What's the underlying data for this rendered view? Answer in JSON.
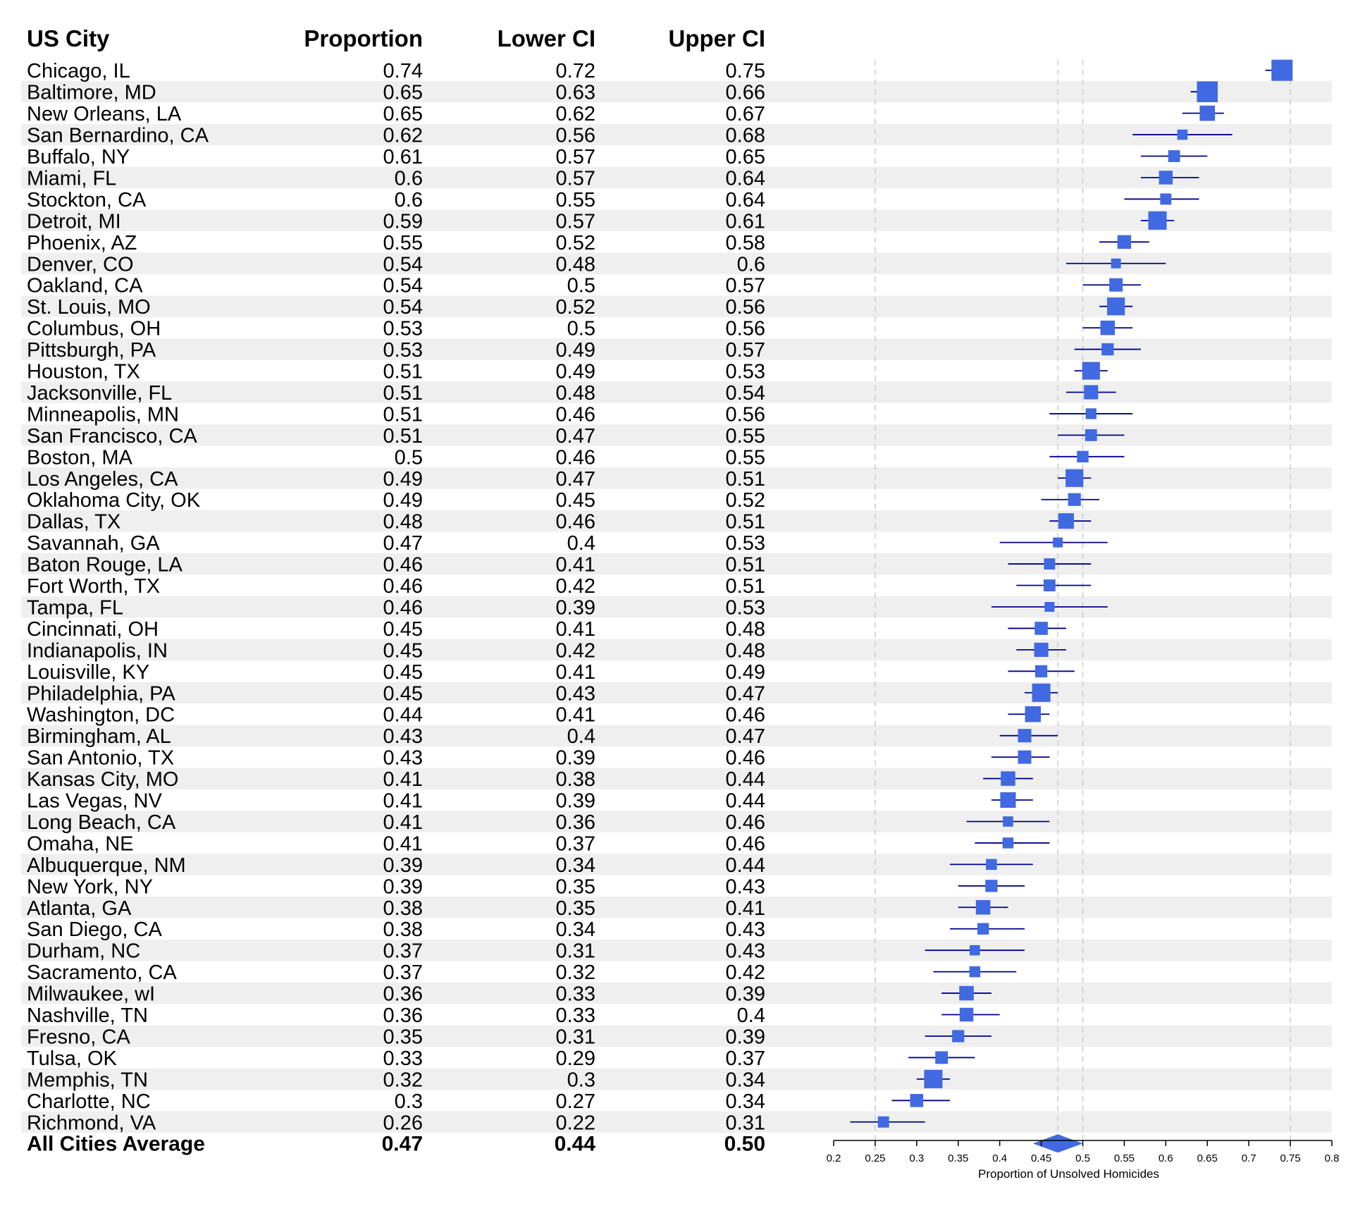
{
  "chart_data": {
    "type": "forest",
    "columns": [
      "US City",
      "Proportion",
      "Lower CI",
      "Upper CI"
    ],
    "xlabel": "Proportion of Unsolved Homicides",
    "xlim": [
      0.2,
      0.8
    ],
    "ticks": [
      0.2,
      0.25,
      0.3,
      0.35,
      0.4,
      0.45,
      0.5,
      0.55,
      0.6,
      0.65,
      0.7,
      0.75,
      0.8
    ],
    "tick_labels": [
      "0.2",
      "0.25",
      "0.3",
      "0.35",
      "0.4",
      "0.45",
      "0.5",
      "0.55",
      "0.6",
      "0.65",
      "0.7",
      "0.75",
      "0.8"
    ],
    "reference_lines": [
      0.25,
      0.47,
      0.5,
      0.75
    ],
    "rows": [
      {
        "city": "Chicago, IL",
        "est": 0.74,
        "lo": 0.72,
        "hi": 0.75,
        "est_text": "0.74",
        "lo_text": "0.72",
        "hi_text": "0.75",
        "w": 1.0
      },
      {
        "city": "Baltimore, MD",
        "est": 0.65,
        "lo": 0.63,
        "hi": 0.66,
        "est_text": "0.65",
        "lo_text": "0.63",
        "hi_text": "0.66",
        "w": 0.98
      },
      {
        "city": "New Orleans, LA",
        "est": 0.65,
        "lo": 0.62,
        "hi": 0.67,
        "est_text": "0.65",
        "lo_text": "0.62",
        "hi_text": "0.67",
        "w": 0.62
      },
      {
        "city": "San Bernardino, CA",
        "est": 0.62,
        "lo": 0.56,
        "hi": 0.68,
        "est_text": "0.62",
        "lo_text": "0.56",
        "hi_text": "0.68",
        "w": 0.3
      },
      {
        "city": "Buffalo, NY",
        "est": 0.61,
        "lo": 0.57,
        "hi": 0.65,
        "est_text": "0.61",
        "lo_text": "0.57",
        "hi_text": "0.65",
        "w": 0.4
      },
      {
        "city": "Miami, FL",
        "est": 0.6,
        "lo": 0.57,
        "hi": 0.64,
        "est_text": "0.6",
        "lo_text": "0.57",
        "hi_text": "0.64",
        "w": 0.52
      },
      {
        "city": "Stockton, CA",
        "est": 0.6,
        "lo": 0.55,
        "hi": 0.64,
        "est_text": "0.6",
        "lo_text": "0.55",
        "hi_text": "0.64",
        "w": 0.36
      },
      {
        "city": "Detroit, MI",
        "est": 0.59,
        "lo": 0.57,
        "hi": 0.61,
        "est_text": "0.59",
        "lo_text": "0.57",
        "hi_text": "0.61",
        "w": 0.82
      },
      {
        "city": "Phoenix, AZ",
        "est": 0.55,
        "lo": 0.52,
        "hi": 0.58,
        "est_text": "0.55",
        "lo_text": "0.52",
        "hi_text": "0.58",
        "w": 0.52
      },
      {
        "city": "Denver, CO",
        "est": 0.54,
        "lo": 0.48,
        "hi": 0.6,
        "est_text": "0.54",
        "lo_text": "0.48",
        "hi_text": "0.6",
        "w": 0.27
      },
      {
        "city": "Oakland, CA",
        "est": 0.54,
        "lo": 0.5,
        "hi": 0.57,
        "est_text": "0.54",
        "lo_text": "0.5",
        "hi_text": "0.57",
        "w": 0.5
      },
      {
        "city": "St. Louis, MO",
        "est": 0.54,
        "lo": 0.52,
        "hi": 0.56,
        "est_text": "0.54",
        "lo_text": "0.52",
        "hi_text": "0.56",
        "w": 0.78
      },
      {
        "city": "Columbus, OH",
        "est": 0.53,
        "lo": 0.5,
        "hi": 0.56,
        "est_text": "0.53",
        "lo_text": "0.5",
        "hi_text": "0.56",
        "w": 0.57
      },
      {
        "city": "Pittsburgh, PA",
        "est": 0.53,
        "lo": 0.49,
        "hi": 0.57,
        "est_text": "0.53",
        "lo_text": "0.49",
        "hi_text": "0.57",
        "w": 0.42
      },
      {
        "city": "Houston, TX",
        "est": 0.51,
        "lo": 0.49,
        "hi": 0.53,
        "est_text": "0.51",
        "lo_text": "0.49",
        "hi_text": "0.53",
        "w": 0.78
      },
      {
        "city": "Jacksonville, FL",
        "est": 0.51,
        "lo": 0.48,
        "hi": 0.54,
        "est_text": "0.51",
        "lo_text": "0.48",
        "hi_text": "0.54",
        "w": 0.55
      },
      {
        "city": "Minneapolis, MN",
        "est": 0.51,
        "lo": 0.46,
        "hi": 0.56,
        "est_text": "0.51",
        "lo_text": "0.46",
        "hi_text": "0.56",
        "w": 0.33
      },
      {
        "city": "San Francisco, CA",
        "est": 0.51,
        "lo": 0.47,
        "hi": 0.55,
        "est_text": "0.51",
        "lo_text": "0.47",
        "hi_text": "0.55",
        "w": 0.4
      },
      {
        "city": "Boston, MA",
        "est": 0.5,
        "lo": 0.46,
        "hi": 0.55,
        "est_text": "0.5",
        "lo_text": "0.46",
        "hi_text": "0.55",
        "w": 0.38
      },
      {
        "city": "Los Angeles, CA",
        "est": 0.49,
        "lo": 0.47,
        "hi": 0.51,
        "est_text": "0.49",
        "lo_text": "0.47",
        "hi_text": "0.51",
        "w": 0.78
      },
      {
        "city": "Oklahoma City, OK",
        "est": 0.49,
        "lo": 0.45,
        "hi": 0.52,
        "est_text": "0.49",
        "lo_text": "0.45",
        "hi_text": "0.52",
        "w": 0.46
      },
      {
        "city": "Dallas, TX",
        "est": 0.48,
        "lo": 0.46,
        "hi": 0.51,
        "est_text": "0.48",
        "lo_text": "0.46",
        "hi_text": "0.51",
        "w": 0.64
      },
      {
        "city": "Savannah, GA",
        "est": 0.47,
        "lo": 0.4,
        "hi": 0.53,
        "est_text": "0.47",
        "lo_text": "0.4",
        "hi_text": "0.53",
        "w": 0.27
      },
      {
        "city": "Baton Rouge, LA",
        "est": 0.46,
        "lo": 0.41,
        "hi": 0.51,
        "est_text": "0.46",
        "lo_text": "0.41",
        "hi_text": "0.51",
        "w": 0.36
      },
      {
        "city": "Fort Worth, TX",
        "est": 0.46,
        "lo": 0.42,
        "hi": 0.51,
        "est_text": "0.46",
        "lo_text": "0.42",
        "hi_text": "0.51",
        "w": 0.4
      },
      {
        "city": "Tampa, FL",
        "est": 0.46,
        "lo": 0.39,
        "hi": 0.53,
        "est_text": "0.46",
        "lo_text": "0.39",
        "hi_text": "0.53",
        "w": 0.27
      },
      {
        "city": "Cincinnati, OH",
        "est": 0.45,
        "lo": 0.41,
        "hi": 0.48,
        "est_text": "0.45",
        "lo_text": "0.41",
        "hi_text": "0.48",
        "w": 0.48
      },
      {
        "city": "Indianapolis, IN",
        "est": 0.45,
        "lo": 0.42,
        "hi": 0.48,
        "est_text": "0.45",
        "lo_text": "0.42",
        "hi_text": "0.48",
        "w": 0.55
      },
      {
        "city": "Louisville, KY",
        "est": 0.45,
        "lo": 0.41,
        "hi": 0.49,
        "est_text": "0.45",
        "lo_text": "0.41",
        "hi_text": "0.49",
        "w": 0.42
      },
      {
        "city": "Philadelphia, PA",
        "est": 0.45,
        "lo": 0.43,
        "hi": 0.47,
        "est_text": "0.45",
        "lo_text": "0.43",
        "hi_text": "0.47",
        "w": 0.82
      },
      {
        "city": "Washington, DC",
        "est": 0.44,
        "lo": 0.41,
        "hi": 0.46,
        "est_text": "0.44",
        "lo_text": "0.41",
        "hi_text": "0.46",
        "w": 0.66
      },
      {
        "city": "Birmingham, AL",
        "est": 0.43,
        "lo": 0.4,
        "hi": 0.47,
        "est_text": "0.43",
        "lo_text": "0.4",
        "hi_text": "0.47",
        "w": 0.5
      },
      {
        "city": "San Antonio, TX",
        "est": 0.43,
        "lo": 0.39,
        "hi": 0.46,
        "est_text": "0.43",
        "lo_text": "0.39",
        "hi_text": "0.46",
        "w": 0.5
      },
      {
        "city": "Kansas City, MO",
        "est": 0.41,
        "lo": 0.38,
        "hi": 0.44,
        "est_text": "0.41",
        "lo_text": "0.38",
        "hi_text": "0.44",
        "w": 0.57
      },
      {
        "city": "Las Vegas, NV",
        "est": 0.41,
        "lo": 0.39,
        "hi": 0.44,
        "est_text": "0.41",
        "lo_text": "0.39",
        "hi_text": "0.44",
        "w": 0.64
      },
      {
        "city": "Long Beach, CA",
        "est": 0.41,
        "lo": 0.36,
        "hi": 0.46,
        "est_text": "0.41",
        "lo_text": "0.36",
        "hi_text": "0.46",
        "w": 0.3
      },
      {
        "city": "Omaha, NE",
        "est": 0.41,
        "lo": 0.37,
        "hi": 0.46,
        "est_text": "0.41",
        "lo_text": "0.37",
        "hi_text": "0.46",
        "w": 0.34
      },
      {
        "city": "Albuquerque, NM",
        "est": 0.39,
        "lo": 0.34,
        "hi": 0.44,
        "est_text": "0.39",
        "lo_text": "0.34",
        "hi_text": "0.44",
        "w": 0.34
      },
      {
        "city": "New York, NY",
        "est": 0.39,
        "lo": 0.35,
        "hi": 0.43,
        "est_text": "0.39",
        "lo_text": "0.35",
        "hi_text": "0.43",
        "w": 0.42
      },
      {
        "city": "Atlanta, GA",
        "est": 0.38,
        "lo": 0.35,
        "hi": 0.41,
        "est_text": "0.38",
        "lo_text": "0.35",
        "hi_text": "0.41",
        "w": 0.57
      },
      {
        "city": "San Diego, CA",
        "est": 0.38,
        "lo": 0.34,
        "hi": 0.43,
        "est_text": "0.38",
        "lo_text": "0.34",
        "hi_text": "0.43",
        "w": 0.38
      },
      {
        "city": "Durham, NC",
        "est": 0.37,
        "lo": 0.31,
        "hi": 0.43,
        "est_text": "0.37",
        "lo_text": "0.31",
        "hi_text": "0.43",
        "w": 0.3
      },
      {
        "city": "Sacramento, CA",
        "est": 0.37,
        "lo": 0.32,
        "hi": 0.42,
        "est_text": "0.37",
        "lo_text": "0.32",
        "hi_text": "0.42",
        "w": 0.34
      },
      {
        "city": "Milwaukee, wI",
        "est": 0.36,
        "lo": 0.33,
        "hi": 0.39,
        "est_text": "0.36",
        "lo_text": "0.33",
        "hi_text": "0.39",
        "w": 0.57
      },
      {
        "city": "Nashville, TN",
        "est": 0.36,
        "lo": 0.33,
        "hi": 0.4,
        "est_text": "0.36",
        "lo_text": "0.33",
        "hi_text": "0.4",
        "w": 0.52
      },
      {
        "city": "Fresno, CA",
        "est": 0.35,
        "lo": 0.31,
        "hi": 0.39,
        "est_text": "0.35",
        "lo_text": "0.31",
        "hi_text": "0.39",
        "w": 0.42
      },
      {
        "city": "Tulsa, OK",
        "est": 0.33,
        "lo": 0.29,
        "hi": 0.37,
        "est_text": "0.33",
        "lo_text": "0.29",
        "hi_text": "0.37",
        "w": 0.45
      },
      {
        "city": "Memphis, TN",
        "est": 0.32,
        "lo": 0.3,
        "hi": 0.34,
        "est_text": "0.32",
        "lo_text": "0.3",
        "hi_text": "0.34",
        "w": 0.82
      },
      {
        "city": "Charlotte, NC",
        "est": 0.3,
        "lo": 0.27,
        "hi": 0.34,
        "est_text": "0.3",
        "lo_text": "0.27",
        "hi_text": "0.34",
        "w": 0.48
      },
      {
        "city": "Richmond, VA",
        "est": 0.26,
        "lo": 0.22,
        "hi": 0.31,
        "est_text": "0.26",
        "lo_text": "0.22",
        "hi_text": "0.31",
        "w": 0.36
      }
    ],
    "summary": {
      "city": "All Cities Average",
      "est": 0.47,
      "lo": 0.44,
      "hi": 0.5,
      "est_text": "0.47",
      "lo_text": "0.44",
      "hi_text": "0.50"
    },
    "colors": {
      "box": "#4169E1",
      "ci_line": "#00008B",
      "band": "#EFEFEF",
      "ref_line": "#CCCCCC",
      "text": "#000000"
    }
  }
}
